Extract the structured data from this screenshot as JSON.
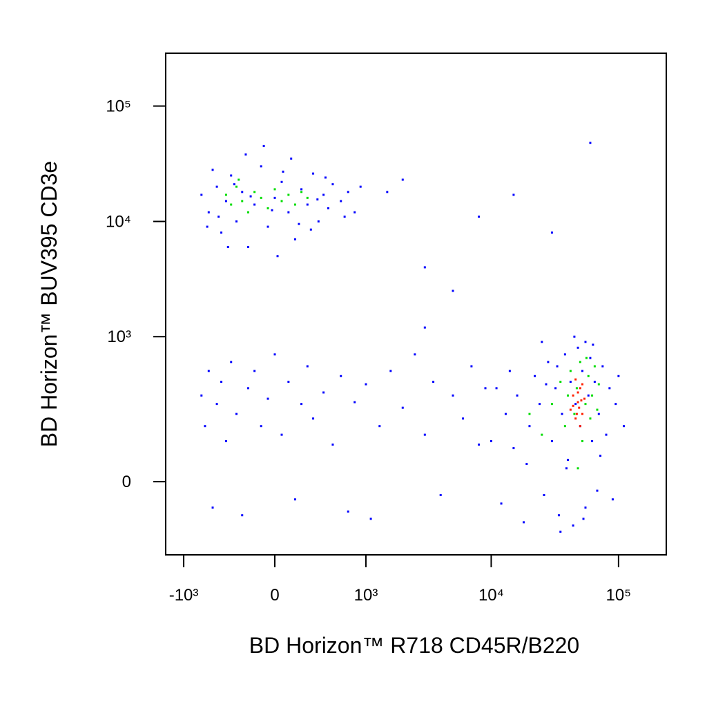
{
  "chart_data": {
    "type": "scatter",
    "xlabel": "BD Horizon™ R718 CD45R/B220",
    "ylabel": "BD Horizon™ BUV395 CD3e",
    "xscale": "biexponential",
    "yscale": "biexponential",
    "xlim": [
      -1410,
      237000
    ],
    "ylim": [
      -226,
      287000
    ],
    "xticks": [
      {
        "value": -1000,
        "label": "-10³"
      },
      0,
      {
        "value": 1000,
        "label": "10³"
      },
      {
        "value": 10000,
        "label": "10⁴"
      },
      {
        "value": 100000,
        "label": "10⁵"
      }
    ],
    "yticks": [
      0,
      {
        "value": 1000,
        "label": "10³"
      },
      {
        "value": 10000,
        "label": "10⁴"
      },
      {
        "value": 100000,
        "label": "10⁵"
      }
    ],
    "series": [
      {
        "color": "#0000ff",
        "x": [
          -600,
          -500,
          -450,
          -400,
          -350,
          -300,
          -250,
          -200,
          -150,
          -100,
          -50,
          0,
          50,
          100,
          150,
          200,
          250,
          300,
          350,
          400,
          450,
          500,
          600,
          700,
          800,
          -700,
          -550,
          -380,
          -220,
          -80,
          20,
          120,
          280,
          420,
          650,
          -480,
          -320,
          -180,
          60,
          180,
          340,
          900,
          1500,
          -620,
          -20,
          2000,
          8000,
          30000,
          60000,
          15000,
          3000,
          -700,
          -650,
          -600,
          -550,
          -500,
          -450,
          -400,
          -350,
          -300,
          -250,
          -200,
          -150,
          -100,
          -50,
          0,
          50,
          100,
          150,
          200,
          250,
          300,
          400,
          500,
          600,
          700,
          800,
          1000,
          1300,
          1600,
          2000,
          2500,
          3000,
          3500,
          4000,
          5000,
          6000,
          7000,
          8000,
          9000,
          1100,
          3000,
          5000,
          10000,
          11000,
          12000,
          13000,
          14000,
          15000,
          16000,
          18000,
          20000,
          22000,
          24000,
          26000,
          28000,
          30000,
          32000,
          34000,
          36000,
          38000,
          40000,
          42000,
          44000,
          46000,
          48000,
          50000,
          52000,
          55000,
          58000,
          60000,
          62000,
          65000,
          68000,
          70000,
          75000,
          80000,
          85000,
          90000,
          95000,
          100000,
          110000,
          25000,
          35000,
          45000,
          55000,
          19000,
          27000,
          33000,
          39000,
          53000,
          63000,
          72000
        ],
        "y": [
          12000,
          20000,
          8000,
          15000,
          25000,
          10000,
          18000,
          6000,
          14000,
          30000,
          9000,
          16000,
          22000,
          12000,
          7000,
          19000,
          14000,
          26000,
          10000,
          17000,
          13000,
          21000,
          15000,
          18000,
          12000,
          17000,
          28000,
          6000,
          38000,
          45000,
          5000,
          35000,
          8500,
          24000,
          11000,
          11000,
          21000,
          16500,
          27000,
          9500,
          15500,
          20000,
          18000,
          9000,
          12500,
          23000,
          11000,
          8000,
          48000,
          17000,
          4000,
          300,
          150,
          500,
          -60,
          250,
          400,
          100,
          600,
          200,
          -80,
          350,
          500,
          150,
          280,
          700,
          120,
          400,
          -40,
          250,
          550,
          180,
          320,
          90,
          450,
          -70,
          260,
          380,
          150,
          500,
          230,
          700,
          120,
          400,
          -30,
          300,
          180,
          550,
          90,
          350,
          -90,
          1200,
          2500,
          100,
          350,
          -50,
          200,
          500,
          80,
          300,
          -100,
          150,
          450,
          250,
          -30,
          600,
          100,
          350,
          -80,
          200,
          700,
          50,
          400,
          -110,
          250,
          800,
          150,
          500,
          -60,
          300,
          650,
          100,
          400,
          -20,
          200,
          550,
          120,
          350,
          -40,
          250,
          450,
          150,
          900,
          -130,
          1000,
          900,
          40,
          380,
          550,
          30,
          -90,
          850,
          60
        ]
      },
      {
        "color": "#00dd00",
        "x": [
          -400,
          -350,
          -300,
          -250,
          -200,
          -150,
          -100,
          -50,
          0,
          50,
          100,
          150,
          200,
          -280,
          250,
          30000,
          35000,
          38000,
          40000,
          42000,
          45000,
          47000,
          50000,
          52000,
          55000,
          58000,
          60000,
          62000,
          65000,
          68000,
          70000,
          20000,
          25000,
          48000,
          56000
        ],
        "y": [
          17000,
          14000,
          20000,
          15000,
          12000,
          18000,
          16000,
          13000,
          19000,
          15000,
          17000,
          14000,
          18000,
          23000,
          16000,
          250,
          400,
          150,
          300,
          500,
          200,
          350,
          600,
          100,
          250,
          450,
          180,
          300,
          550,
          220,
          380,
          200,
          120,
          30,
          650
        ]
      },
      {
        "color": "#ff2000",
        "x": [
          42000,
          44000,
          46000,
          48000,
          50000,
          52000,
          54000,
          46000,
          50000,
          48000,
          44000,
          52000,
          47000,
          51000,
          49000
        ],
        "y": [
          220,
          300,
          180,
          260,
          350,
          200,
          280,
          420,
          150,
          320,
          240,
          380,
          200,
          270,
          230
        ]
      }
    ]
  }
}
